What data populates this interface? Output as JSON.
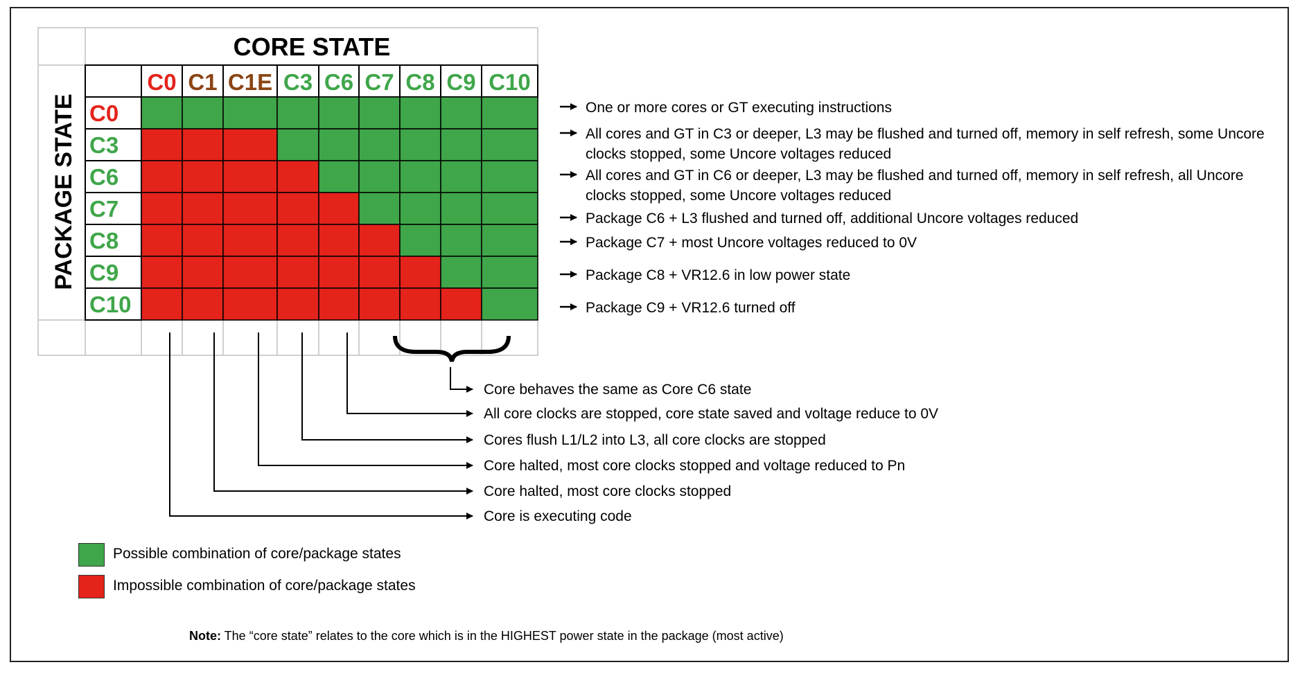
{
  "core_state_title": "CORE STATE",
  "package_state_title": "PACKAGE STATE",
  "core_states": [
    {
      "label": "C0",
      "color": "#e4231b"
    },
    {
      "label": "C1",
      "color": "#8b4513"
    },
    {
      "label": "C1E",
      "color": "#8b4513"
    },
    {
      "label": "C3",
      "color": "#3fa64a"
    },
    {
      "label": "C6",
      "color": "#3fa64a"
    },
    {
      "label": "C7",
      "color": "#3fa64a"
    },
    {
      "label": "C8",
      "color": "#3fa64a"
    },
    {
      "label": "C9",
      "color": "#3fa64a"
    },
    {
      "label": "C10",
      "color": "#3fa64a"
    }
  ],
  "package_states": [
    {
      "label": "C0",
      "color": "#e4231b",
      "description": [
        "One or more cores or GT executing instructions"
      ]
    },
    {
      "label": "C3",
      "color": "#3fa64a",
      "description": [
        "All cores and GT in C3 or deeper, L3 may be flushed and turned off, memory in self refresh, some Uncore",
        "clocks stopped, some Uncore voltages reduced"
      ]
    },
    {
      "label": "C6",
      "color": "#3fa64a",
      "description": [
        "All cores and GT in C6 or deeper, L3 may be flushed and turned off, memory in self refresh, all Uncore",
        "clocks stopped, some Uncore voltages reduced"
      ]
    },
    {
      "label": "C7",
      "color": "#3fa64a",
      "description": [
        "Package C6 + L3 flushed and turned off, additional Uncore voltages reduced"
      ]
    },
    {
      "label": "C8",
      "color": "#3fa64a",
      "description": [
        "Package C7 + most Uncore voltages reduced to 0V"
      ]
    },
    {
      "label": "C9",
      "color": "#3fa64a",
      "description": [
        "Package C8 + VR12.6 in low power state"
      ]
    },
    {
      "label": "C10",
      "color": "#3fa64a",
      "description": [
        "Package C9 + VR12.6 turned off"
      ]
    }
  ],
  "possible_from_core_index": [
    0,
    3,
    4,
    5,
    6,
    7,
    8
  ],
  "core_descriptions": [
    {
      "text": "Core behaves the same as Core C6 state",
      "core": "C8-C10"
    },
    {
      "text": "All core clocks are stopped, core state saved and voltage reduce to 0V",
      "core": "C6"
    },
    {
      "text": "Cores flush L1/L2 into L3, all core clocks are stopped",
      "core": "C3"
    },
    {
      "text": "Core halted, most core clocks stopped and voltage reduced to Pn",
      "core": "C1E"
    },
    {
      "text": "Core halted, most core clocks stopped",
      "core": "C1"
    },
    {
      "text": "Core is executing code",
      "core": "C0"
    }
  ],
  "legend": [
    {
      "label": "Possible combination of core/package states",
      "color": "#3fa64a"
    },
    {
      "label": "Impossible combination of core/package states",
      "color": "#e4231b"
    }
  ],
  "note": {
    "label": "Note:",
    "text": " The “core state” relates to the core which is in the HIGHEST power state in the package (most active)"
  },
  "colors": {
    "possible": "#3fa64a",
    "impossible": "#e4231b",
    "grid": "#ffffff",
    "outer_grid": "#cfcfcf"
  }
}
